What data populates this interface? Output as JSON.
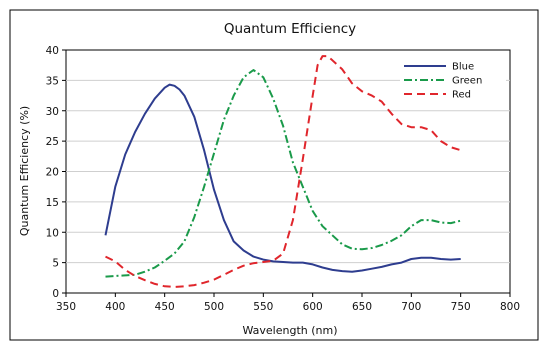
{
  "chart_data": {
    "type": "line",
    "title": "Quantum Efficiency",
    "xlabel": "Wavelength (nm)",
    "ylabel": "Quantum Efficiency (%)",
    "xlim": [
      350,
      800
    ],
    "ylim": [
      0,
      40
    ],
    "xticks": [
      350,
      400,
      450,
      500,
      550,
      600,
      650,
      700,
      750,
      800
    ],
    "yticks": [
      0,
      5,
      10,
      15,
      20,
      25,
      30,
      35,
      40
    ],
    "grid": "horizontal",
    "legend_position": "top-right",
    "series": [
      {
        "name": "Blue",
        "color": "#2e3d8f",
        "dash": "solid",
        "x": [
          390,
          400,
          410,
          420,
          430,
          440,
          450,
          455,
          460,
          465,
          470,
          480,
          490,
          500,
          510,
          520,
          530,
          540,
          550,
          560,
          570,
          580,
          590,
          600,
          610,
          620,
          630,
          640,
          650,
          660,
          670,
          680,
          690,
          700,
          710,
          720,
          730,
          740,
          750
        ],
        "y": [
          9.5,
          17.5,
          22.8,
          26.5,
          29.5,
          32.0,
          33.8,
          34.3,
          34.1,
          33.5,
          32.5,
          29.0,
          23.5,
          17.0,
          12.0,
          8.5,
          7.0,
          6.0,
          5.5,
          5.2,
          5.1,
          5.0,
          5.0,
          4.7,
          4.2,
          3.8,
          3.6,
          3.5,
          3.7,
          4.0,
          4.3,
          4.7,
          5.0,
          5.6,
          5.8,
          5.8,
          5.6,
          5.5,
          5.6
        ]
      },
      {
        "name": "Green",
        "color": "#1a9a4a",
        "dash": "dashdot",
        "x": [
          390,
          400,
          410,
          420,
          430,
          440,
          450,
          460,
          470,
          480,
          490,
          500,
          510,
          520,
          530,
          540,
          550,
          560,
          570,
          580,
          590,
          600,
          610,
          620,
          630,
          640,
          650,
          660,
          670,
          680,
          690,
          700,
          710,
          720,
          730,
          740,
          750
        ],
        "y": [
          2.7,
          2.8,
          2.9,
          3.0,
          3.5,
          4.2,
          5.3,
          6.5,
          8.5,
          12.5,
          17.5,
          23.0,
          28.5,
          32.5,
          35.5,
          36.7,
          35.5,
          32.0,
          27.5,
          21.5,
          17.5,
          13.5,
          11.0,
          9.5,
          8.0,
          7.3,
          7.2,
          7.4,
          7.9,
          8.6,
          9.5,
          11.0,
          12.0,
          12.0,
          11.6,
          11.5,
          11.9
        ]
      },
      {
        "name": "Red",
        "color": "#e0262c",
        "dash": "dashed",
        "x": [
          390,
          400,
          410,
          420,
          430,
          440,
          450,
          460,
          470,
          480,
          490,
          500,
          510,
          520,
          530,
          540,
          550,
          560,
          570,
          580,
          590,
          600,
          605,
          610,
          615,
          620,
          630,
          640,
          650,
          660,
          670,
          680,
          690,
          700,
          710,
          720,
          730,
          740,
          750
        ],
        "y": [
          6.0,
          5.2,
          3.8,
          2.8,
          2.1,
          1.5,
          1.1,
          1.0,
          1.1,
          1.3,
          1.7,
          2.2,
          3.0,
          3.8,
          4.5,
          4.9,
          5.1,
          5.3,
          6.5,
          12.0,
          22.0,
          32.5,
          37.5,
          39.0,
          39.0,
          38.3,
          36.8,
          34.5,
          33.2,
          32.5,
          31.5,
          29.5,
          27.8,
          27.3,
          27.3,
          26.8,
          25.0,
          24.0,
          23.5
        ]
      }
    ]
  }
}
